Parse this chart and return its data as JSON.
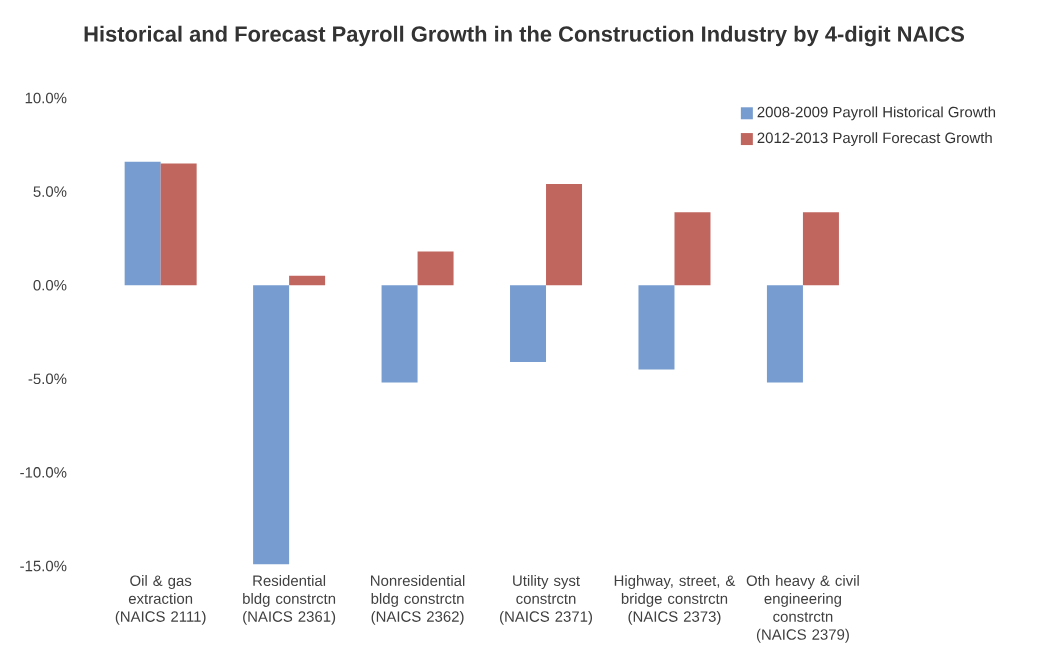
{
  "chart_data": {
    "type": "bar",
    "title": "Historical and Forecast Payroll Growth in the Construction Industry by 4-digit NAICS",
    "categories": [
      "Oil & gas extraction (NAICS 2111)",
      "Residential bldg constrctn (NAICS 2361)",
      "Nonresidential bldg constrctn (NAICS 2362)",
      "Utility syst constrctn (NAICS 2371)",
      "Highway, street, & bridge constrctn (NAICS 2373)",
      "Oth heavy & civil engineering constrctn (NAICS 2379)"
    ],
    "series": [
      {
        "name": "2008-2009 Payroll Historical Growth",
        "color": "#779ccf",
        "values": [
          6.6,
          -14.9,
          -5.2,
          -4.1,
          -4.5,
          -5.2
        ]
      },
      {
        "name": "2012-2013 Payroll Forecast Growth",
        "color": "#c0665f",
        "values": [
          6.5,
          0.5,
          1.8,
          5.4,
          3.9,
          3.9
        ]
      }
    ],
    "ylim": [
      -15,
      10
    ],
    "yticks": [
      {
        "value": -15,
        "label": "-15.0%"
      },
      {
        "value": -10,
        "label": "-10.0%"
      },
      {
        "value": -5,
        "label": "-5.0%"
      },
      {
        "value": 0,
        "label": "0.0%"
      },
      {
        "value": 5,
        "label": "5.0%"
      },
      {
        "value": 10,
        "label": "10.0%"
      }
    ],
    "legend": "top right"
  }
}
